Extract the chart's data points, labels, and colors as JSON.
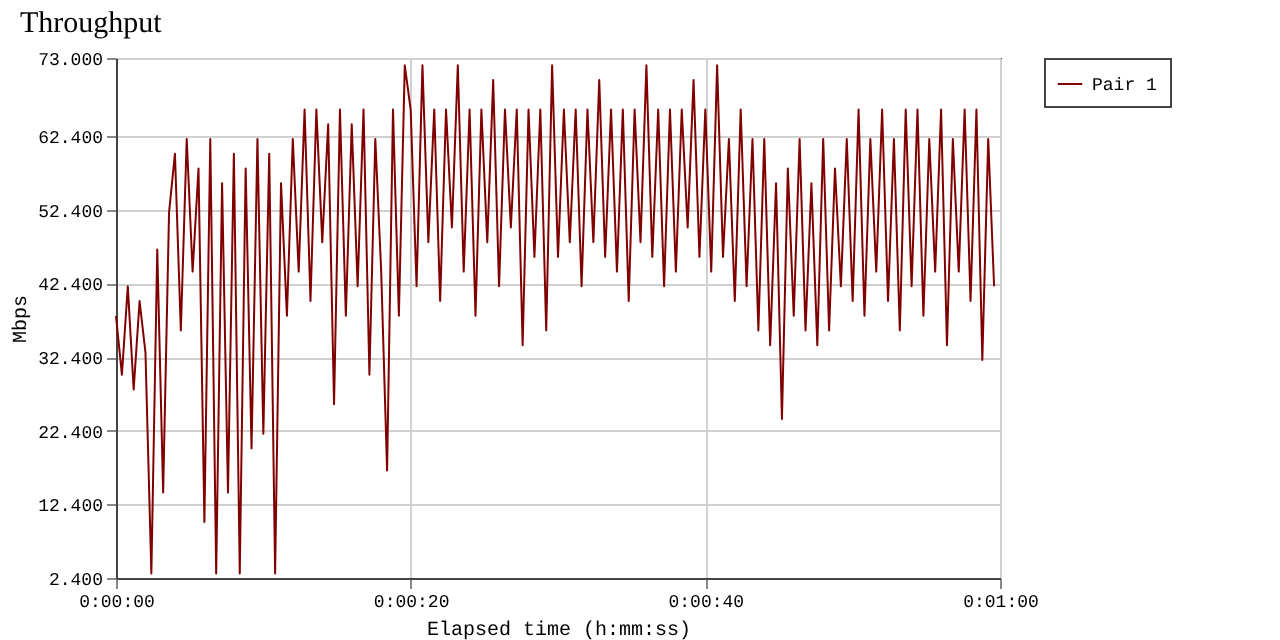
{
  "chart_data": {
    "type": "line",
    "title": "Throughput",
    "xlabel": "Elapsed time (h:mm:ss)",
    "ylabel": "Mbps",
    "x": [
      0,
      0.4,
      0.8,
      1.2,
      1.6,
      2,
      2.4,
      2.8,
      3.2,
      3.6,
      4,
      4.4,
      4.8,
      5.2,
      5.6,
      6,
      6.4,
      6.8,
      7.2,
      7.6,
      8,
      8.4,
      8.8,
      9.2,
      9.6,
      10,
      10.4,
      10.8,
      11.2,
      11.6,
      12,
      12.4,
      12.8,
      13.2,
      13.6,
      14,
      14.4,
      14.8,
      15.2,
      15.6,
      16,
      16.4,
      16.8,
      17.2,
      17.6,
      18,
      18.4,
      18.8,
      19.2,
      19.6,
      20,
      20.4,
      20.8,
      21.2,
      21.6,
      22,
      22.4,
      22.8,
      23.2,
      23.6,
      24,
      24.4,
      24.8,
      25.2,
      25.6,
      26,
      26.4,
      26.8,
      27.2,
      27.6,
      28,
      28.4,
      28.8,
      29.2,
      29.6,
      30,
      30.4,
      30.8,
      31.2,
      31.6,
      32,
      32.4,
      32.8,
      33.2,
      33.6,
      34,
      34.4,
      34.8,
      35.2,
      35.6,
      36,
      36.4,
      36.8,
      37.2,
      37.6,
      38,
      38.4,
      38.8,
      39.2,
      39.6,
      40,
      40.4,
      40.8,
      41.2,
      41.6,
      42,
      42.4,
      42.8,
      43.2,
      43.6,
      44,
      44.4,
      44.8,
      45.2,
      45.6,
      46,
      46.4,
      46.8,
      47.2,
      47.6,
      48,
      48.4,
      48.8,
      49.2,
      49.6,
      50,
      50.4,
      50.8,
      51.2,
      51.6,
      52,
      52.4,
      52.8,
      53.2,
      53.6,
      54,
      54.4,
      54.8,
      55.2,
      55.6,
      56,
      56.4,
      56.8,
      57.2,
      57.6,
      58,
      58.4,
      58.8,
      59.2,
      59.6
    ],
    "series": [
      {
        "name": "Pair 1",
        "color": "#800000",
        "values": [
          38,
          30,
          42,
          28,
          40,
          33,
          3,
          47,
          14,
          52,
          60,
          36,
          62,
          44,
          58,
          10,
          62,
          3,
          56,
          14,
          60,
          3,
          58,
          20,
          62,
          22,
          60,
          3,
          56,
          38,
          62,
          44,
          66,
          40,
          66,
          48,
          64,
          26,
          66,
          38,
          64,
          42,
          66,
          30,
          62,
          44,
          17,
          66,
          38,
          72,
          66,
          42,
          72,
          48,
          66,
          40,
          66,
          50,
          72,
          44,
          66,
          38,
          66,
          48,
          70,
          42,
          66,
          50,
          66,
          34,
          66,
          46,
          66,
          36,
          72,
          46,
          66,
          48,
          66,
          42,
          66,
          48,
          70,
          46,
          66,
          44,
          66,
          40,
          66,
          48,
          72,
          46,
          66,
          42,
          66,
          44,
          66,
          50,
          70,
          46,
          66,
          44,
          72,
          46,
          62,
          40,
          66,
          42,
          62,
          36,
          62,
          34,
          56,
          24,
          58,
          38,
          62,
          36,
          56,
          34,
          62,
          36,
          58,
          42,
          62,
          40,
          66,
          38,
          62,
          44,
          66,
          40,
          62,
          36,
          66,
          42,
          66,
          38,
          62,
          44,
          66,
          34,
          62,
          44,
          66,
          40,
          66,
          32,
          62,
          42
        ]
      }
    ],
    "xlim": [
      0,
      60
    ],
    "xticks": [
      {
        "value": 0,
        "label": "0:00:00"
      },
      {
        "value": 20,
        "label": "0:00:20"
      },
      {
        "value": 40,
        "label": "0:00:40"
      },
      {
        "value": 60,
        "label": "0:01:00"
      }
    ],
    "ylim": [
      2.4,
      73
    ],
    "yticks": [
      {
        "value": 2.4,
        "label": "2.400"
      },
      {
        "value": 12.4,
        "label": "12.400"
      },
      {
        "value": 22.4,
        "label": "22.400"
      },
      {
        "value": 32.4,
        "label": "32.400"
      },
      {
        "value": 42.4,
        "label": "42.400"
      },
      {
        "value": 52.4,
        "label": "52.400"
      },
      {
        "value": 62.4,
        "label": "62.400"
      },
      {
        "value": 73,
        "label": "73.000"
      }
    ],
    "grid": true,
    "legend": "right",
    "marker": "none",
    "line_style": "solid"
  }
}
